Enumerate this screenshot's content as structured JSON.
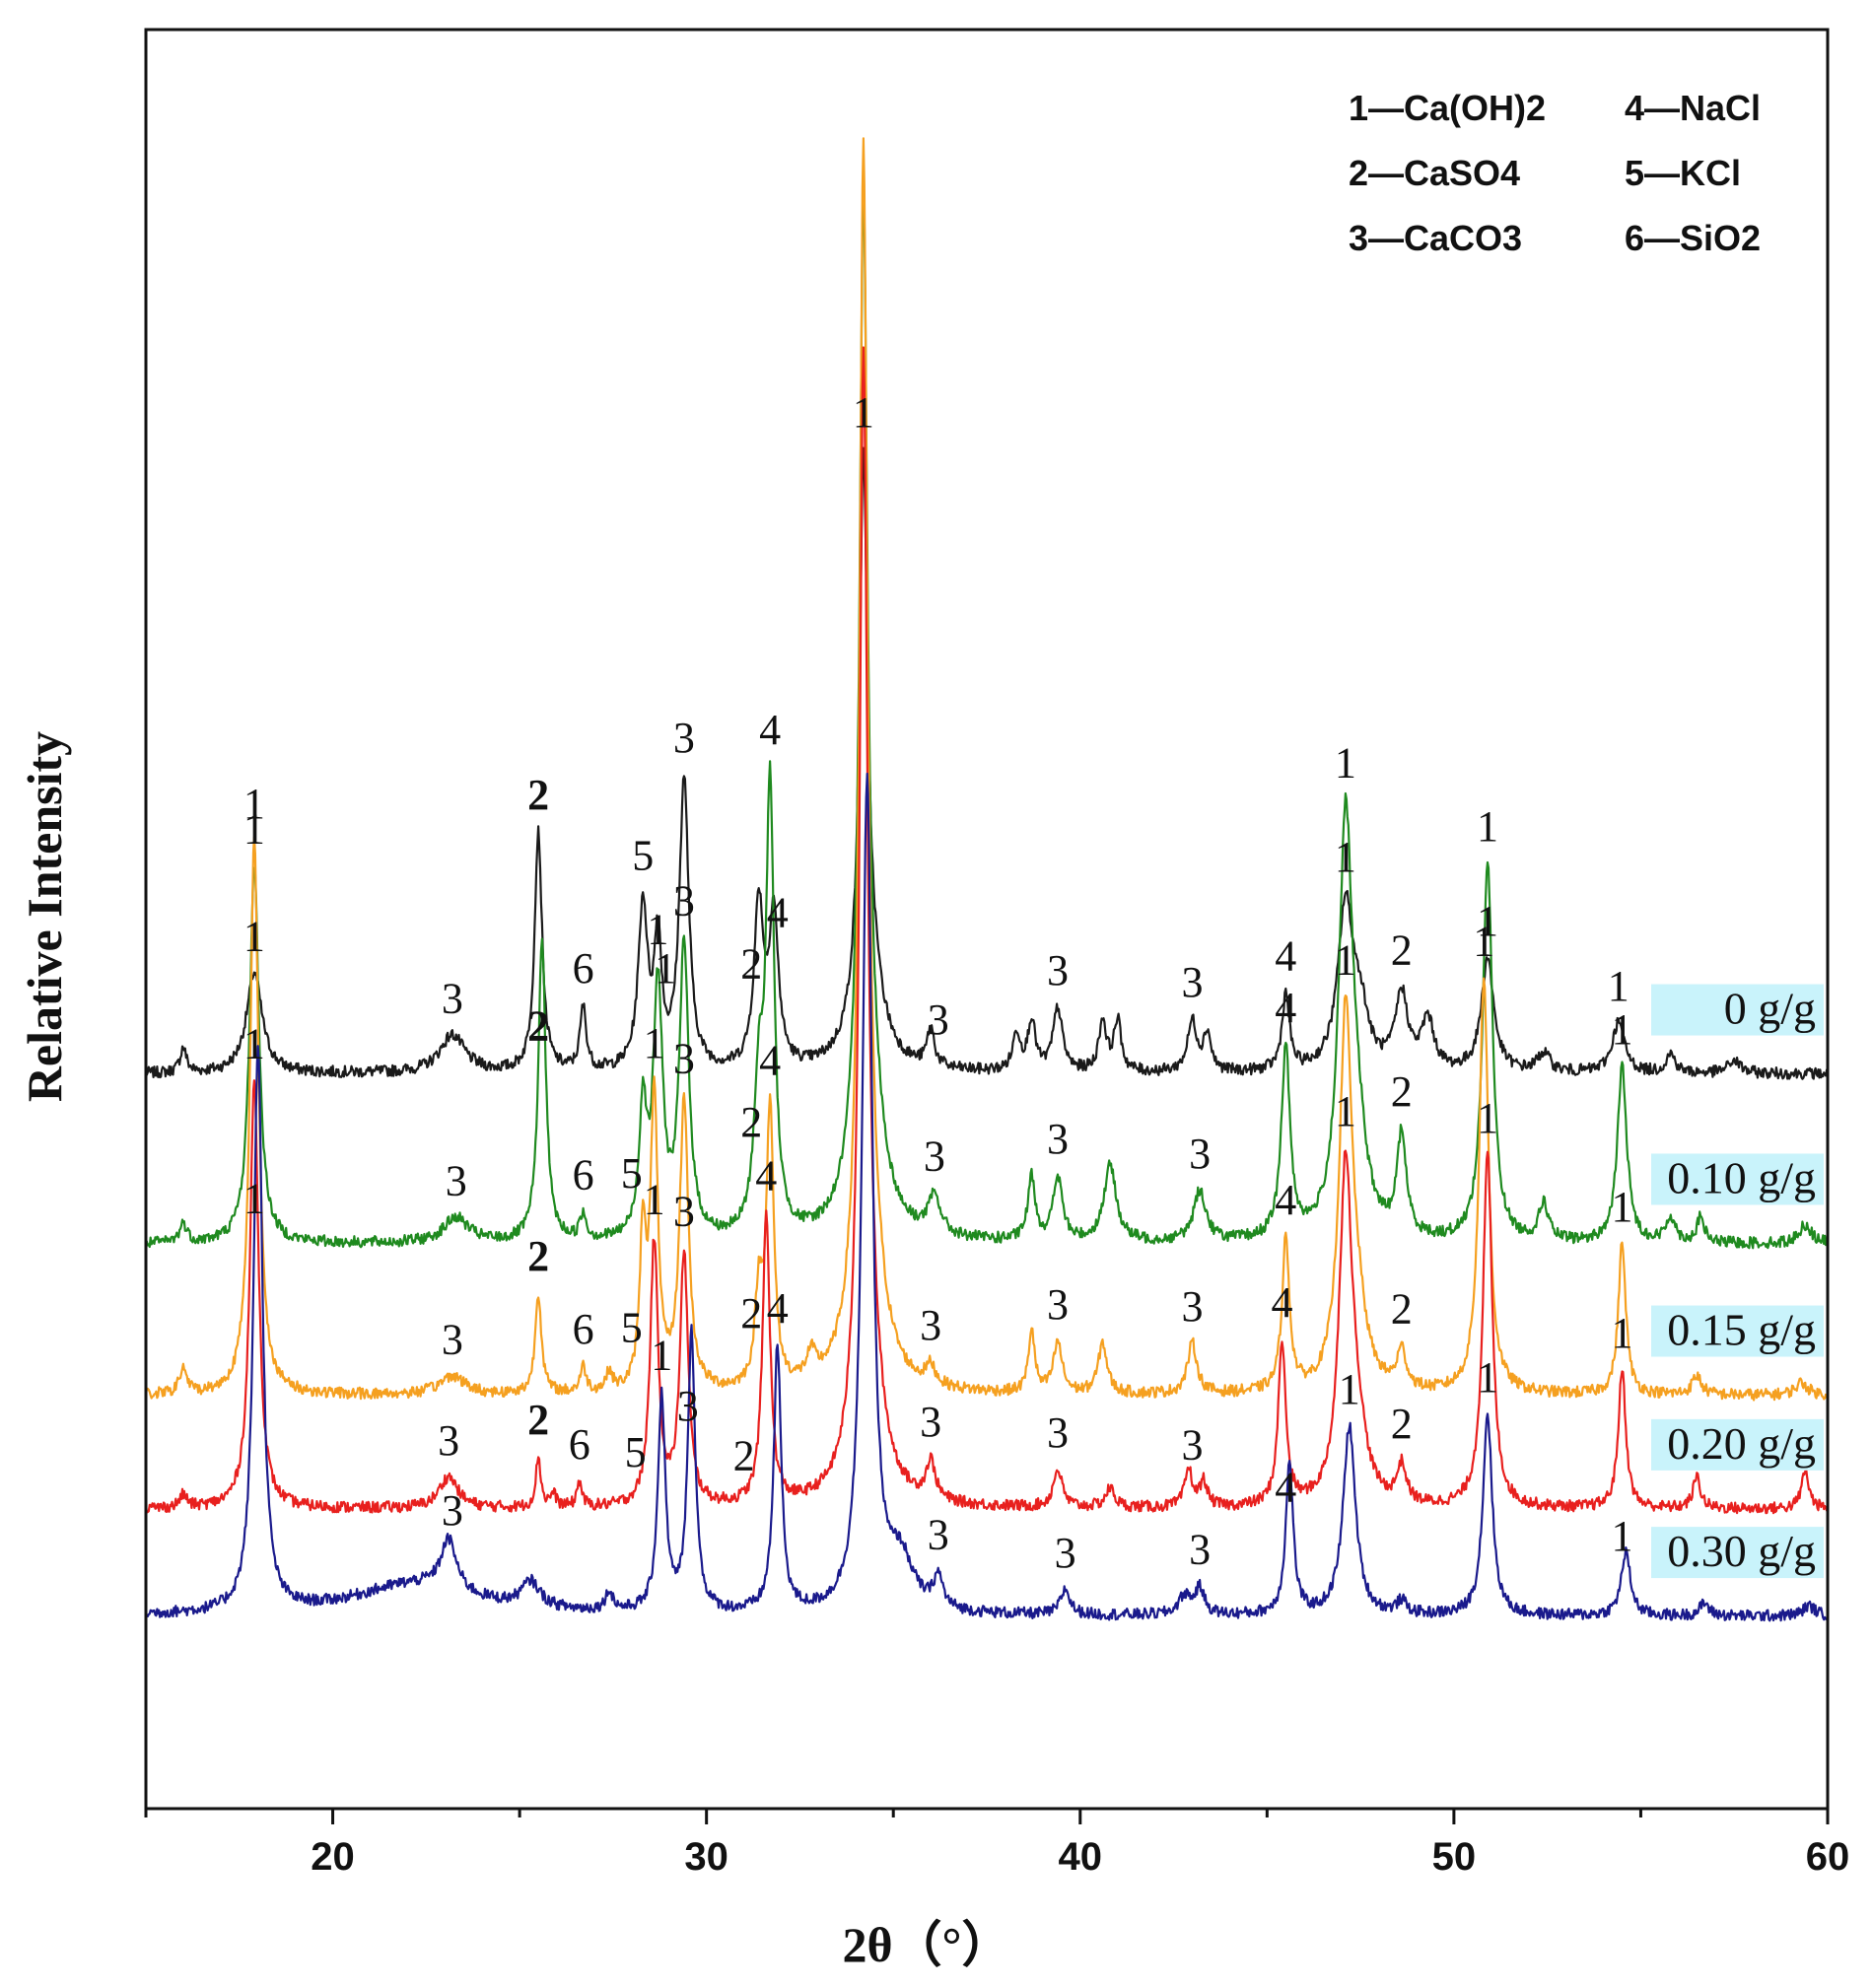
{
  "chart_data": {
    "type": "line",
    "title": "",
    "xlabel": "2θ（°）",
    "ylabel": "Relative Intensity",
    "xlim": [
      15,
      60
    ],
    "xticks": [
      20,
      30,
      40,
      50,
      60
    ],
    "legend": [
      {
        "id": "1",
        "text": "1—Ca(OH)2"
      },
      {
        "id": "2",
        "text": "2—CaSO4"
      },
      {
        "id": "3",
        "text": "3—CaCO3"
      },
      {
        "id": "4",
        "text": "4—NaCl"
      },
      {
        "id": "5",
        "text": "5—KCl"
      },
      {
        "id": "6",
        "text": "6—SiO2"
      }
    ],
    "series": [
      {
        "name": "0 g/g",
        "color": "#1a1a1a",
        "offset": 4.3,
        "peaks": [
          [
            16.0,
            0.2,
            0.1
          ],
          [
            17.9,
            0.8,
            0.25
          ],
          [
            23.2,
            0.3,
            0.4
          ],
          [
            25.5,
            1.9,
            0.12
          ],
          [
            26.7,
            0.5,
            0.1
          ],
          [
            28.3,
            1.3,
            0.15
          ],
          [
            28.7,
            1.0,
            0.12
          ],
          [
            29.4,
            2.3,
            0.15
          ],
          [
            31.4,
            1.3,
            0.15
          ],
          [
            31.8,
            1.2,
            0.15
          ],
          [
            34.2,
            4.0,
            0.12
          ],
          [
            34.3,
            1.0,
            0.4
          ],
          [
            36.0,
            0.3,
            0.12
          ],
          [
            38.3,
            0.3,
            0.12
          ],
          [
            38.7,
            0.4,
            0.12
          ],
          [
            39.4,
            0.5,
            0.15
          ],
          [
            40.6,
            0.4,
            0.12
          ],
          [
            41.0,
            0.4,
            0.12
          ],
          [
            43.0,
            0.4,
            0.15
          ],
          [
            43.4,
            0.3,
            0.12
          ],
          [
            45.5,
            0.6,
            0.12
          ],
          [
            47.1,
            1.3,
            0.25
          ],
          [
            47.5,
            0.4,
            0.25
          ],
          [
            48.6,
            0.6,
            0.2
          ],
          [
            49.3,
            0.4,
            0.2
          ],
          [
            50.9,
            0.9,
            0.2
          ],
          [
            52.4,
            0.15,
            0.2
          ],
          [
            54.4,
            0.4,
            0.2
          ],
          [
            55.8,
            0.15,
            0.15
          ],
          [
            57.5,
            0.1,
            0.2
          ]
        ],
        "labels": [
          [
            17.9,
            "1"
          ],
          [
            23.2,
            "3"
          ],
          [
            25.5,
            "2"
          ],
          [
            26.7,
            "6"
          ],
          [
            28.3,
            "5"
          ],
          [
            28.9,
            "1"
          ],
          [
            29.4,
            "3"
          ],
          [
            31.2,
            "2"
          ],
          [
            31.9,
            "4"
          ],
          [
            34.2,
            "1"
          ],
          [
            36.2,
            "3"
          ],
          [
            39.4,
            "3"
          ],
          [
            43.0,
            "3"
          ],
          [
            45.5,
            "4"
          ],
          [
            47.1,
            "1"
          ],
          [
            48.6,
            "2"
          ],
          [
            50.9,
            "1"
          ],
          [
            54.4,
            "1"
          ]
        ]
      },
      {
        "name": "0.10 g/g",
        "color": "#1f8a1f",
        "offset": 2.95,
        "peaks": [
          [
            16.0,
            0.15,
            0.12
          ],
          [
            17.9,
            3.0,
            0.15
          ],
          [
            23.3,
            0.2,
            0.4
          ],
          [
            25.6,
            2.4,
            0.12
          ],
          [
            26.7,
            0.2,
            0.1
          ],
          [
            28.3,
            1.0,
            0.12
          ],
          [
            28.7,
            2.0,
            0.15
          ],
          [
            29.4,
            2.3,
            0.15
          ],
          [
            31.4,
            1.1,
            0.15
          ],
          [
            31.7,
            3.5,
            0.13
          ],
          [
            34.2,
            7.0,
            0.12
          ],
          [
            34.3,
            1.5,
            0.4
          ],
          [
            36.1,
            0.3,
            0.2
          ],
          [
            38.7,
            0.5,
            0.12
          ],
          [
            39.4,
            0.5,
            0.15
          ],
          [
            40.8,
            0.6,
            0.2
          ],
          [
            43.2,
            0.4,
            0.2
          ],
          [
            45.5,
            1.5,
            0.14
          ],
          [
            47.1,
            3.2,
            0.22
          ],
          [
            47.4,
            0.6,
            0.3
          ],
          [
            48.6,
            0.8,
            0.15
          ],
          [
            50.9,
            3.0,
            0.16
          ],
          [
            52.4,
            0.3,
            0.15
          ],
          [
            54.5,
            1.4,
            0.15
          ],
          [
            55.8,
            0.2,
            0.15
          ],
          [
            56.6,
            0.2,
            0.12
          ],
          [
            59.4,
            0.15,
            0.2
          ]
        ],
        "labels": [
          [
            17.9,
            "1"
          ],
          [
            23.3,
            "3"
          ],
          [
            25.5,
            "2"
          ],
          [
            26.7,
            "6"
          ],
          [
            28.0,
            "5"
          ],
          [
            28.7,
            "1"
          ],
          [
            29.4,
            "3"
          ],
          [
            31.2,
            "2"
          ],
          [
            31.7,
            "4"
          ],
          [
            36.1,
            "3"
          ],
          [
            39.4,
            "3"
          ],
          [
            43.2,
            "3"
          ],
          [
            45.5,
            "4"
          ],
          [
            47.1,
            "1"
          ],
          [
            48.6,
            "2"
          ],
          [
            50.9,
            "1"
          ],
          [
            54.5,
            "1"
          ]
        ]
      },
      {
        "name": "0.15 g/g",
        "color": "#f5a020",
        "offset": 1.75,
        "peaks": [
          [
            16.0,
            0.2,
            0.12
          ],
          [
            17.9,
            4.4,
            0.14
          ],
          [
            23.2,
            0.15,
            0.4
          ],
          [
            25.5,
            0.8,
            0.1
          ],
          [
            26.7,
            0.2,
            0.1
          ],
          [
            27.4,
            0.15,
            0.1
          ],
          [
            28.3,
            1.2,
            0.1
          ],
          [
            28.6,
            2.3,
            0.12
          ],
          [
            29.4,
            2.3,
            0.14
          ],
          [
            31.4,
            0.7,
            0.12
          ],
          [
            31.7,
            2.2,
            0.12
          ],
          [
            32.8,
            0.2,
            0.15
          ],
          [
            34.2,
            8.5,
            0.12
          ],
          [
            34.3,
            1.5,
            0.4
          ],
          [
            36.0,
            0.15,
            0.15
          ],
          [
            38.7,
            0.5,
            0.1
          ],
          [
            39.4,
            0.4,
            0.14
          ],
          [
            40.6,
            0.4,
            0.14
          ],
          [
            43.0,
            0.4,
            0.15
          ],
          [
            45.5,
            1.2,
            0.12
          ],
          [
            47.1,
            2.9,
            0.2
          ],
          [
            47.4,
            0.5,
            0.3
          ],
          [
            48.6,
            0.3,
            0.15
          ],
          [
            50.8,
            3.3,
            0.15
          ],
          [
            54.5,
            1.2,
            0.12
          ],
          [
            56.5,
            0.15,
            0.15
          ],
          [
            59.3,
            0.1,
            0.2
          ]
        ],
        "labels": [
          [
            17.9,
            "1"
          ],
          [
            23.2,
            "3"
          ],
          [
            25.5,
            "2"
          ],
          [
            26.7,
            "6"
          ],
          [
            28.0,
            "5"
          ],
          [
            28.6,
            "1"
          ],
          [
            29.4,
            "3"
          ],
          [
            31.2,
            "2"
          ],
          [
            31.7,
            "4"
          ],
          [
            36.0,
            "3"
          ],
          [
            39.4,
            "3"
          ],
          [
            43.0,
            "3"
          ],
          [
            45.5,
            "4"
          ],
          [
            47.1,
            "1"
          ],
          [
            48.6,
            "2"
          ],
          [
            50.8,
            "1"
          ],
          [
            54.5,
            "1"
          ]
        ]
      },
      {
        "name": "0.20 g/g",
        "color": "#e8201e",
        "offset": 0.85,
        "peaks": [
          [
            16.0,
            0.1,
            0.12
          ],
          [
            17.9,
            3.4,
            0.14
          ],
          [
            23.1,
            0.25,
            0.3
          ],
          [
            25.5,
            0.4,
            0.08
          ],
          [
            25.9,
            0.1,
            0.1
          ],
          [
            26.6,
            0.2,
            0.08
          ],
          [
            28.6,
            2.1,
            0.13
          ],
          [
            29.4,
            2.0,
            0.13
          ],
          [
            31.6,
            2.3,
            0.12
          ],
          [
            34.2,
            8.0,
            0.12
          ],
          [
            34.3,
            1.3,
            0.4
          ],
          [
            36.0,
            0.3,
            0.15
          ],
          [
            39.4,
            0.3,
            0.14
          ],
          [
            40.8,
            0.15,
            0.15
          ],
          [
            42.9,
            0.3,
            0.12
          ],
          [
            43.3,
            0.2,
            0.12
          ],
          [
            45.4,
            1.3,
            0.12
          ],
          [
            47.1,
            2.6,
            0.2
          ],
          [
            47.4,
            0.5,
            0.3
          ],
          [
            48.6,
            0.3,
            0.15
          ],
          [
            50.9,
            2.8,
            0.15
          ],
          [
            54.5,
            1.1,
            0.12
          ],
          [
            56.5,
            0.25,
            0.12
          ],
          [
            59.4,
            0.3,
            0.12
          ]
        ],
        "labels": [
          [
            17.9,
            "1"
          ],
          [
            23.1,
            "3"
          ],
          [
            25.5,
            "2"
          ],
          [
            26.6,
            "6"
          ],
          [
            28.1,
            "5"
          ],
          [
            28.6,
            "1"
          ],
          [
            29.4,
            "3"
          ],
          [
            31.0,
            "2"
          ],
          [
            31.6,
            "4"
          ],
          [
            36.0,
            "3"
          ],
          [
            39.4,
            "3"
          ],
          [
            43.0,
            "3"
          ],
          [
            45.4,
            "4"
          ],
          [
            47.1,
            "1"
          ],
          [
            48.6,
            "2"
          ],
          [
            50.9,
            "1"
          ],
          [
            54.5,
            "1"
          ]
        ]
      },
      {
        "name": "0.30 g/g",
        "color": "#1a1a8c",
        "offset": 0.0,
        "peaks": [
          [
            18.0,
            4.5,
            0.14
          ],
          [
            22.2,
            0.25,
            2.0
          ],
          [
            23.1,
            0.4,
            0.25
          ],
          [
            25.3,
            0.2,
            0.3
          ],
          [
            27.4,
            0.15,
            0.12
          ],
          [
            28.8,
            1.7,
            0.12
          ],
          [
            29.6,
            2.2,
            0.12
          ],
          [
            31.9,
            2.1,
            0.12
          ],
          [
            34.3,
            6.6,
            0.16
          ],
          [
            35.2,
            0.4,
            0.4
          ],
          [
            36.2,
            0.25,
            0.15
          ],
          [
            39.6,
            0.2,
            0.15
          ],
          [
            42.8,
            0.15,
            0.2
          ],
          [
            43.2,
            0.2,
            0.15
          ],
          [
            45.6,
            1.2,
            0.12
          ],
          [
            47.2,
            1.5,
            0.2
          ],
          [
            48.6,
            0.1,
            0.15
          ],
          [
            50.9,
            1.6,
            0.15
          ],
          [
            54.6,
            0.5,
            0.15
          ],
          [
            56.7,
            0.1,
            0.15
          ],
          [
            59.5,
            0.08,
            0.2
          ]
        ],
        "labels": [
          [
            17.9,
            "1"
          ],
          [
            23.2,
            "3"
          ],
          [
            28.8,
            "1"
          ],
          [
            29.5,
            "3"
          ],
          [
            31.9,
            "4"
          ],
          [
            36.2,
            "3"
          ],
          [
            39.6,
            "3"
          ],
          [
            43.2,
            "3"
          ],
          [
            45.5,
            "4"
          ],
          [
            47.2,
            "1"
          ],
          [
            50.9,
            "1"
          ],
          [
            54.5,
            "1"
          ]
        ]
      }
    ]
  }
}
